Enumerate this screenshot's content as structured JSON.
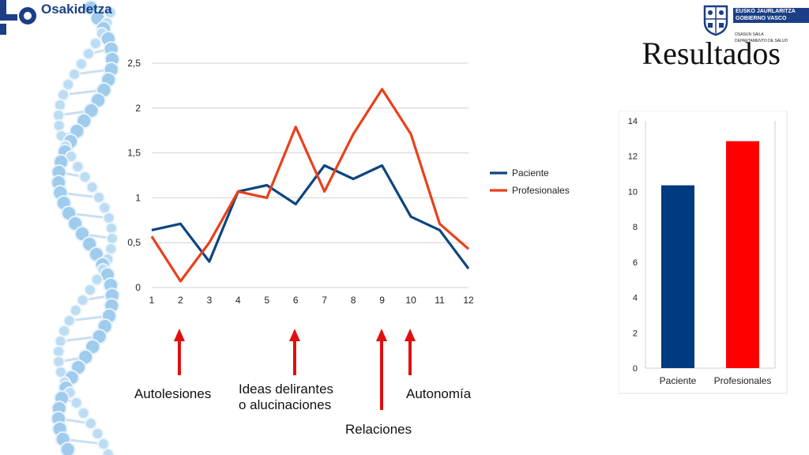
{
  "header": {
    "left_logo_text": "Osakidetza",
    "right_logo_lines": [
      "EUSKO JAURLARITZA",
      "GOBIERNO VASCO"
    ],
    "right_logo_dept": [
      "OSASUN SAILA",
      "DEPARTAMENTO DE SALUD"
    ],
    "title": "Resultados"
  },
  "colors": {
    "paciente": "#0d4580",
    "profesionales": "#e8401c",
    "bar_paciente": "#003a80",
    "bar_profesionales": "#ff0000",
    "arrow": "#e01010",
    "logo": "#1b3f86"
  },
  "annotations": {
    "autolesiones": "Autolesiones",
    "ideas_line1": "Ideas delirantes",
    "ideas_line2": "o alucinaciones",
    "relaciones": "Relaciones",
    "autonomia": "Autonomía"
  },
  "chart_data": [
    {
      "type": "line",
      "x": [
        1,
        2,
        3,
        4,
        5,
        6,
        7,
        8,
        9,
        10,
        11,
        12
      ],
      "series": [
        {
          "name": "Paciente",
          "values": [
            0.64,
            0.71,
            0.29,
            1.07,
            1.14,
            0.93,
            1.36,
            1.21,
            1.36,
            0.79,
            0.64,
            0.21
          ]
        },
        {
          "name": "Profesionales",
          "values": [
            0.57,
            0.07,
            0.5,
            1.07,
            1.0,
            1.79,
            1.07,
            1.71,
            2.21,
            1.71,
            0.71,
            0.43
          ]
        }
      ],
      "ylim": [
        0,
        2.5
      ],
      "yticks": [
        "0",
        "0,5",
        "1",
        "1,5",
        "2",
        "2,5"
      ],
      "xticks": [
        "1",
        "2",
        "3",
        "4",
        "5",
        "6",
        "7",
        "8",
        "9",
        "10",
        "11",
        "12"
      ],
      "grid": true,
      "legend": "right"
    },
    {
      "type": "bar",
      "categories": [
        "Paciente",
        "Profesionales"
      ],
      "values": [
        10.35,
        12.85
      ],
      "ylim": [
        0,
        14
      ],
      "yticks": [
        "0",
        "2",
        "4",
        "6",
        "8",
        "10",
        "12",
        "14"
      ],
      "grid": false
    }
  ]
}
